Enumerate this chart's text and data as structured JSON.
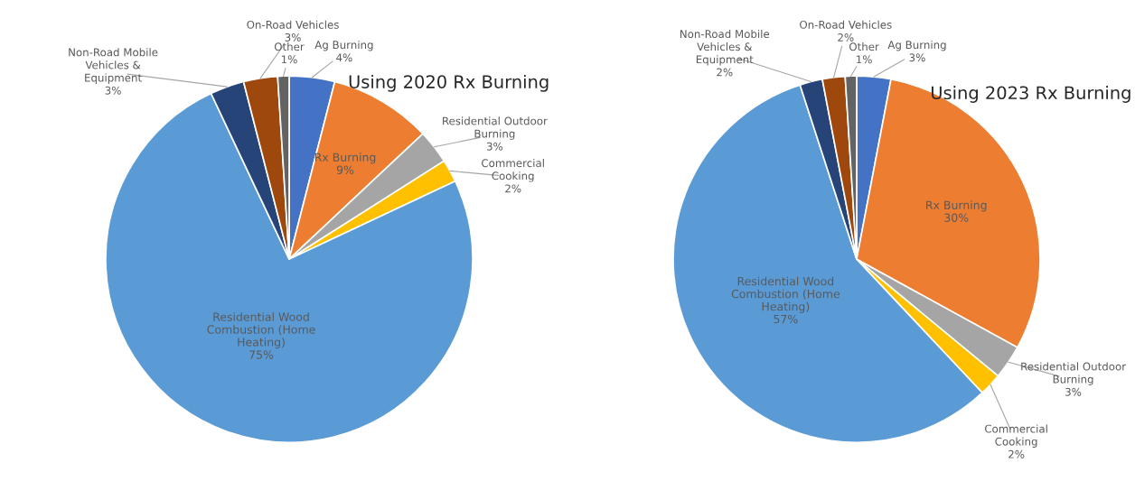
{
  "chart_data": [
    {
      "type": "pie",
      "title": "Using 2020 Rx Burning",
      "categories": [
        "Ag Burning",
        "Rx Burning",
        "Residential Outdoor\nBurning",
        "Commercial\nCooking",
        "Residential Wood\nCombustion (Home\nHeating)",
        "Non-Road Mobile\nVehicles &\nEquipment",
        "On-Road Vehicles",
        "Other"
      ],
      "values": [
        4,
        9,
        3,
        2,
        75,
        3,
        3,
        1
      ],
      "value_labels": [
        "4%",
        "9%",
        "3%",
        "2%",
        "75%",
        "3%",
        "3%",
        "1%"
      ],
      "colors": [
        "#4472c4",
        "#ed7d31",
        "#a5a5a5",
        "#ffc000",
        "#5b9bd5",
        "#264478",
        "#9e480e",
        "#636363"
      ]
    },
    {
      "type": "pie",
      "title": "Using 2023 Rx Burning",
      "categories": [
        "Ag Burning",
        "Rx Burning",
        "Residential Outdoor\nBurning",
        "Commercial\nCooking",
        "Residential Wood\nCombustion (Home\nHeating)",
        "Non-Road Mobile\nVehicles &\nEquipment",
        "On-Road Vehicles",
        "Other"
      ],
      "values": [
        3,
        30,
        3,
        2,
        57,
        2,
        2,
        1
      ],
      "value_labels": [
        "3%",
        "30%",
        "3%",
        "2%",
        "57%",
        "2%",
        "2%",
        "1%"
      ],
      "colors": [
        "#4472c4",
        "#ed7d31",
        "#a5a5a5",
        "#ffc000",
        "#5b9bd5",
        "#264478",
        "#9e480e",
        "#636363"
      ]
    }
  ]
}
